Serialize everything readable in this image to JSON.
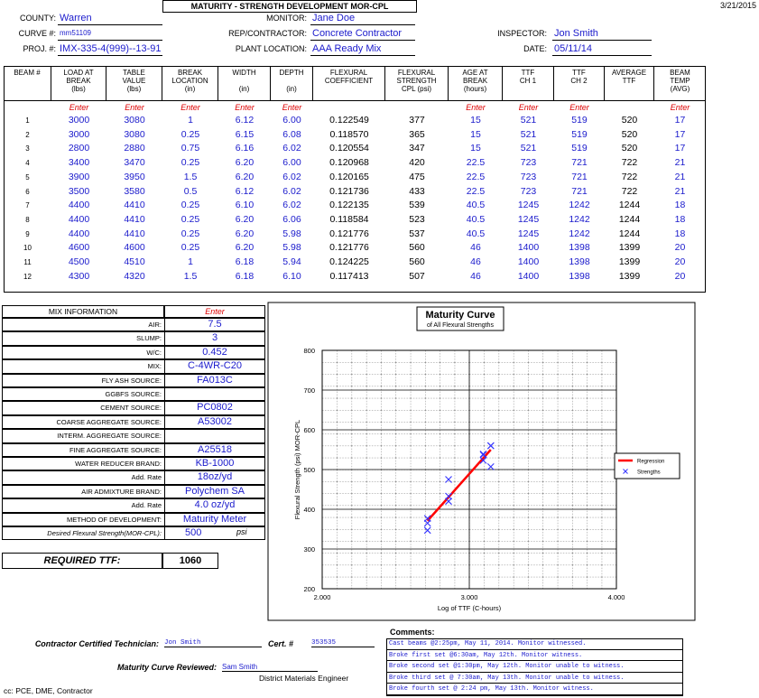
{
  "header": {
    "date": "3/21/2015",
    "title": "MATURITY - STRENGTH DEVELOPMENT MOR-CPL",
    "fields": [
      {
        "label": "COUNTY:",
        "value": "Warren"
      },
      {
        "label": "MONITOR:",
        "value": "Jane Doe"
      },
      {
        "label": "CURVE #:",
        "value": "mm51109"
      },
      {
        "label": "REP/CONTRACTOR:",
        "value": "Concrete Contractor"
      },
      {
        "label": "INSPECTOR:",
        "value": "Jon Smith"
      },
      {
        "label": "PROJ. #:",
        "value": "IMX-335-4(999)--13-91"
      },
      {
        "label": "PLANT LOCATION:",
        "value": "AAA Ready Mix"
      },
      {
        "label": "DATE:",
        "value": "05/11/14"
      }
    ]
  },
  "table": {
    "columns": [
      {
        "lines": [
          "BEAM #"
        ]
      },
      {
        "lines": [
          "LOAD AT",
          "BREAK",
          "(lbs)"
        ],
        "enter": "Enter"
      },
      {
        "lines": [
          "TABLE",
          "VALUE",
          "(lbs)"
        ],
        "enter": "Enter"
      },
      {
        "lines": [
          "BREAK",
          "LOCATION",
          "(in)"
        ],
        "enter": "Enter"
      },
      {
        "lines": [
          "WIDTH",
          "",
          "(in)"
        ],
        "enter": "Enter"
      },
      {
        "lines": [
          "DEPTH",
          "",
          "(in)"
        ],
        "enter": "Enter"
      },
      {
        "lines": [
          "FLEXURAL",
          "COEFFICIENT"
        ]
      },
      {
        "lines": [
          "FLEXURAL",
          "STRENGTH",
          "CPL (psi)"
        ]
      },
      {
        "lines": [
          "AGE AT",
          "BREAK",
          "(hours)"
        ],
        "enter": "Enter"
      },
      {
        "lines": [
          "TTF",
          "CH 1"
        ],
        "enter": "Enter"
      },
      {
        "lines": [
          "TTF",
          "CH 2"
        ],
        "enter": "Enter"
      },
      {
        "lines": [
          "AVERAGE",
          "TTF"
        ]
      },
      {
        "lines": [
          "BEAM",
          "TEMP",
          "(AVG)"
        ],
        "enter": "Enter"
      }
    ],
    "rows": [
      [
        "1",
        "3000",
        "3080",
        "1",
        "6.12",
        "6.00",
        "0.122549",
        "377",
        "15",
        "521",
        "519",
        "520",
        "17"
      ],
      [
        "2",
        "3000",
        "3080",
        "0.25",
        "6.15",
        "6.08",
        "0.118570",
        "365",
        "15",
        "521",
        "519",
        "520",
        "17"
      ],
      [
        "3",
        "2800",
        "2880",
        "0.75",
        "6.16",
        "6.02",
        "0.120554",
        "347",
        "15",
        "521",
        "519",
        "520",
        "17"
      ],
      [
        "4",
        "3400",
        "3470",
        "0.25",
        "6.20",
        "6.00",
        "0.120968",
        "420",
        "22.5",
        "723",
        "721",
        "722",
        "21"
      ],
      [
        "5",
        "3900",
        "3950",
        "1.5",
        "6.20",
        "6.02",
        "0.120165",
        "475",
        "22.5",
        "723",
        "721",
        "722",
        "21"
      ],
      [
        "6",
        "3500",
        "3580",
        "0.5",
        "6.12",
        "6.02",
        "0.121736",
        "433",
        "22.5",
        "723",
        "721",
        "722",
        "21"
      ],
      [
        "7",
        "4400",
        "4410",
        "0.25",
        "6.10",
        "6.02",
        "0.122135",
        "539",
        "40.5",
        "1245",
        "1242",
        "1244",
        "18"
      ],
      [
        "8",
        "4400",
        "4410",
        "0.25",
        "6.20",
        "6.06",
        "0.118584",
        "523",
        "40.5",
        "1245",
        "1242",
        "1244",
        "18"
      ],
      [
        "9",
        "4400",
        "4410",
        "0.25",
        "6.20",
        "5.98",
        "0.121776",
        "537",
        "40.5",
        "1245",
        "1242",
        "1244",
        "18"
      ],
      [
        "10",
        "4600",
        "4600",
        "0.25",
        "6.20",
        "5.98",
        "0.121776",
        "560",
        "46",
        "1400",
        "1398",
        "1399",
        "20"
      ],
      [
        "11",
        "4500",
        "4510",
        "1",
        "6.18",
        "5.94",
        "0.124225",
        "560",
        "46",
        "1400",
        "1398",
        "1399",
        "20"
      ],
      [
        "12",
        "4300",
        "4320",
        "1.5",
        "6.18",
        "6.10",
        "0.117413",
        "507",
        "46",
        "1400",
        "1398",
        "1399",
        "20"
      ]
    ]
  },
  "mix": {
    "title": "MIX INFORMATION",
    "enter": "Enter",
    "rows": [
      {
        "label": "AIR:",
        "value": "7.5"
      },
      {
        "label": "SLUMP:",
        "value": "3"
      },
      {
        "label": "W/C:",
        "value": "0.452"
      },
      {
        "label": "MIX:",
        "value": "C-4WR-C20"
      },
      {
        "label": "FLY ASH SOURCE:",
        "value": "FA013C"
      },
      {
        "label": "GGBFS SOURCE:"
      },
      {
        "label": "CEMENT SOURCE:",
        "value": "PC0802"
      },
      {
        "label": "COARSE AGGREGATE SOURCE:",
        "value": "A53002"
      },
      {
        "label": "INTERM. AGGREGATE SOURCE:"
      },
      {
        "label": "FINE AGGREGATE SOURCE:",
        "value": "A25518"
      },
      {
        "label": "WATER REDUCER BRAND:",
        "value": "KB-1000"
      },
      {
        "label": "Add. Rate",
        "value": "18oz/yd"
      },
      {
        "label": "AIR ADMIXTURE BRAND:",
        "value": "Polychem SA"
      },
      {
        "label": "Add. Rate",
        "value": "4.0 oz/yd"
      },
      {
        "label": "METHOD OF DEVELOPMENT:",
        "value": "Maturity Meter"
      },
      {
        "label": "Desired Flexural Strength(MOR-CPL):",
        "value": "500",
        "unit": "psi"
      }
    ]
  },
  "required": {
    "label": "REQUIRED TTF:",
    "value": "1060"
  },
  "chart_data": {
    "type": "scatter",
    "title": "Maturity Curve",
    "subtitle": "of All Flexural Strengths",
    "x_label": "Log of TTF (C-hours)",
    "y_label": "Flexural Strength (psi) MOR-CPL",
    "xlim": [
      2,
      4
    ],
    "xticks": [
      {
        "value": 2,
        "label": "2.000"
      },
      {
        "value": 3,
        "label": "3.000"
      },
      {
        "value": 4,
        "label": "4.000"
      }
    ],
    "ylim": [
      200,
      800
    ],
    "yticks": [
      200,
      300,
      400,
      500,
      600,
      700,
      800
    ],
    "grid": true,
    "legend": "right",
    "series": [
      {
        "name": "Regression",
        "color": "#ff0000",
        "mark": "line",
        "x": [
          2.716,
          3.146
        ],
        "values": [
          371,
          550
        ]
      },
      {
        "name": "Strengths",
        "color": "#3333ff",
        "mark": "cross",
        "x": [
          2.716,
          2.716,
          2.716,
          2.859,
          2.859,
          2.859,
          3.095,
          3.095,
          3.095,
          3.146,
          3.146,
          3.146
        ],
        "values": [
          377,
          365,
          347,
          420,
          475,
          433,
          539,
          523,
          537,
          560,
          560,
          507
        ]
      }
    ]
  },
  "comments": {
    "title": "Comments:",
    "lines": [
      "Cast beams @2:25pm, May 11, 2014. Monitor witnessed.",
      "Broke first set @6:30am, May 12th. Monitor witness.",
      "Broke second set @1:30pm, May 12th. Monitor unable to witness.",
      "Broke third set @ 7:30am, May 13th. Monitor unable to witness.",
      "Broke fourth set @ 2:24 pm, May 13th. Monitor witness."
    ]
  },
  "footer": {
    "technician_label": "Contractor Certified Technician:",
    "technician": "Jon Smith",
    "cert_label": "Cert. #",
    "cert": "353535",
    "reviewed_label": "Maturity Curve Reviewed:",
    "reviewer": "Sam Smith",
    "reviewer_title": "District Materials Engineer",
    "cc": "cc: PCE, DME, Contractor"
  }
}
